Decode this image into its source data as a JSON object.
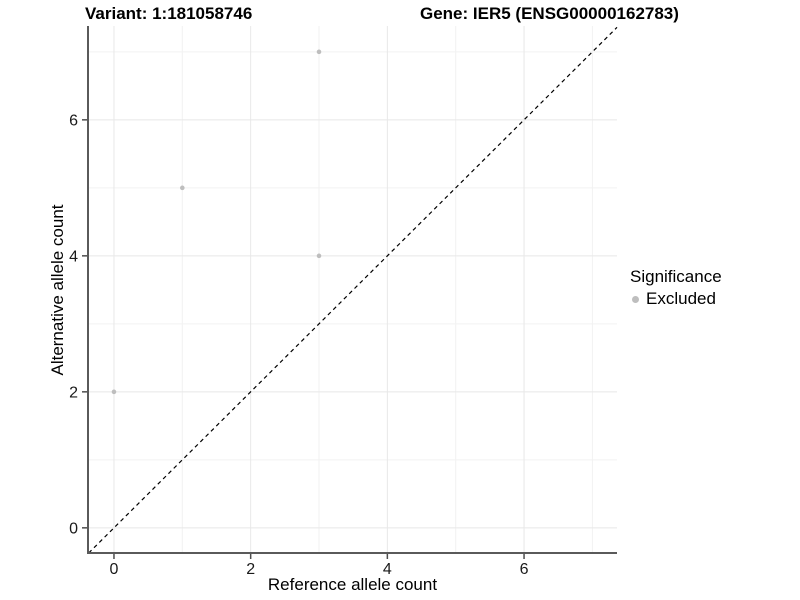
{
  "chart_data": {
    "type": "scatter",
    "title_left": "Variant: 1:181058746",
    "title_right": "Gene: IER5 (ENSG00000162783)",
    "xlabel": "Reference allele count",
    "ylabel": "Alternative allele count",
    "xlim": [
      -0.38,
      7.36
    ],
    "ylim": [
      -0.37,
      7.38
    ],
    "x_major_ticks": [
      0,
      2,
      4,
      6
    ],
    "y_major_ticks": [
      0,
      2,
      4,
      6
    ],
    "x_minor_ticks": [
      1,
      3,
      5,
      7
    ],
    "y_minor_ticks": [
      1,
      3,
      5,
      7
    ],
    "grid": true,
    "series": [
      {
        "name": "Excluded",
        "color": "#bebebe",
        "points": [
          {
            "x": 0,
            "y": 2
          },
          {
            "x": 1,
            "y": 5
          },
          {
            "x": 3,
            "y": 4
          },
          {
            "x": 3,
            "y": 7
          }
        ]
      }
    ],
    "reference_line": {
      "type": "identity",
      "style": "dashed",
      "color": "#000000"
    },
    "legend": {
      "title": "Significance",
      "position": "right",
      "items": [
        {
          "label": "Excluded",
          "color": "#bebebe"
        }
      ]
    },
    "colors": {
      "background": "#ffffff",
      "grid_major": "#e8e8e8",
      "grid_minor": "#f2f2f2",
      "axis_line": "#5a5a5a",
      "tick_mark": "#4d4d4d",
      "tick_label": "#1a1a1a"
    }
  }
}
